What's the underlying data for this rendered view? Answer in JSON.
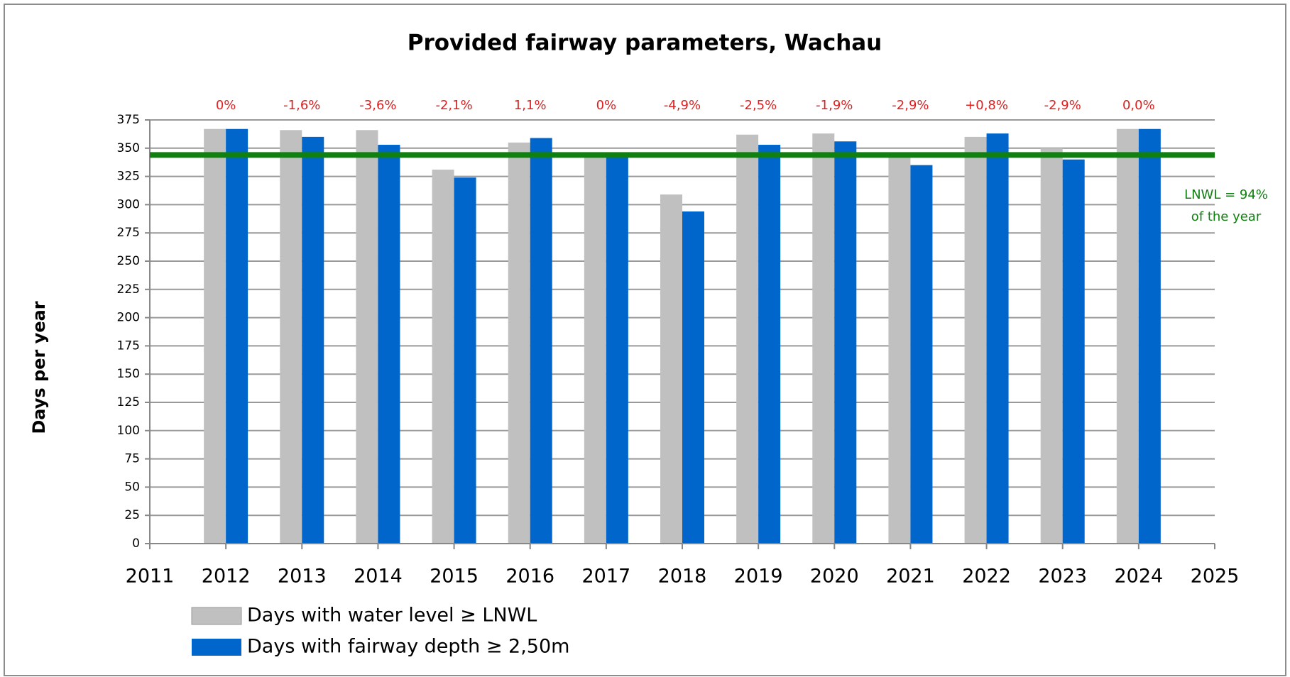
{
  "chart_data": {
    "type": "bar",
    "title": "Provided fairway parameters, Wachau",
    "y_label": "Days per year",
    "x": [
      2012,
      2013,
      2014,
      2015,
      2016,
      2017,
      2018,
      2019,
      2020,
      2021,
      2022,
      2023,
      2024
    ],
    "series": [
      {
        "name": "Days with water level ≥ LNWL",
        "color": "#c0c0c0",
        "values": [
          367,
          366,
          366,
          331,
          355,
          345,
          309,
          362,
          363,
          345,
          360,
          350,
          367
        ]
      },
      {
        "name": "Days with fairway depth ≥ 2,50m",
        "color": "#0066cc",
        "values": [
          367,
          360,
          353,
          324,
          359,
          345,
          294,
          353,
          356,
          335,
          363,
          340,
          367
        ]
      }
    ],
    "annotations": [
      "0%",
      "-1,6%",
      "-3,6%",
      "-2,1%",
      "1,1%",
      "0%",
      "-4,9%",
      "-2,5%",
      "-1,9%",
      "-2,9%",
      "+0,8%",
      "-2,9%",
      "0,0%"
    ],
    "annotation_color": "#e02020",
    "reference_line": {
      "value": 344,
      "color": "#108010",
      "label": [
        "LNWL = 94%",
        "of the year"
      ]
    },
    "xlim": [
      2011,
      2025
    ],
    "xticks": [
      2011,
      2012,
      2013,
      2014,
      2015,
      2016,
      2017,
      2018,
      2019,
      2020,
      2021,
      2022,
      2023,
      2024,
      2025
    ],
    "ylim": [
      0,
      375
    ],
    "yticks": [
      0,
      25,
      50,
      75,
      100,
      125,
      150,
      175,
      200,
      225,
      250,
      275,
      300,
      325,
      350,
      375
    ],
    "grid": true
  }
}
